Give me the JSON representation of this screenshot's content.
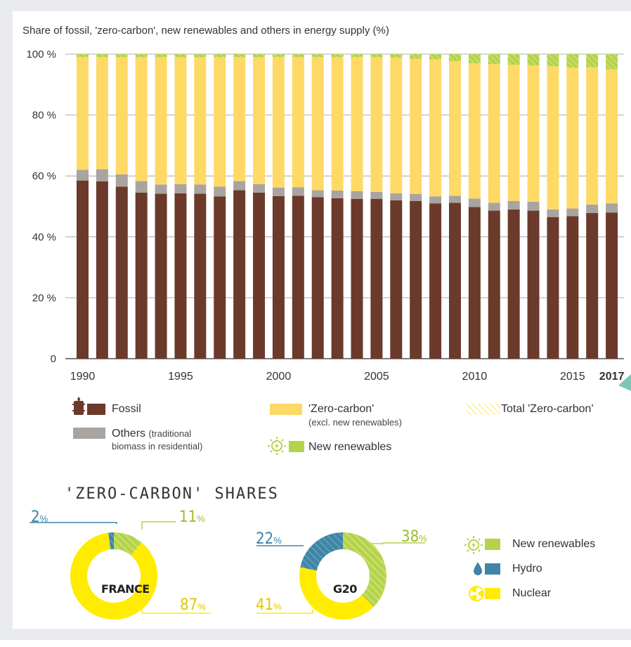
{
  "colors": {
    "fossil": "#6b3a2a",
    "others": "#a9a4a0",
    "zero_carbon": "#ffd966",
    "new_renewables": "#b5d34a",
    "hydro": "#3f85a6",
    "nuclear": "#ffec00",
    "frame_bg": "#e8eaee"
  },
  "chart_title": "Share of fossil, 'zero-carbon', new renewables and others in energy supply (%)",
  "chart_data": [
    {
      "type": "bar",
      "stacked": true,
      "title": "Share of fossil, 'zero-carbon', new renewables and others in energy supply (%)",
      "xlabel": "",
      "ylabel": "",
      "ylim": [
        0,
        100
      ],
      "y_ticks": [
        "100 %",
        "80 %",
        "60 %",
        "40 %",
        "20 %",
        "0"
      ],
      "x_tick_labels": [
        "1990",
        "1995",
        "2000",
        "2005",
        "2010",
        "2015",
        "2017"
      ],
      "categories": [
        "1990",
        "1991",
        "1992",
        "1993",
        "1994",
        "1995",
        "1996",
        "1997",
        "1998",
        "1999",
        "2000",
        "2001",
        "2002",
        "2003",
        "2004",
        "2005",
        "2006",
        "2007",
        "2008",
        "2009",
        "2010",
        "2011",
        "2012",
        "2013",
        "2014",
        "2015",
        "2016",
        "2017"
      ],
      "series": [
        {
          "name": "Fossil",
          "values": [
            58.5,
            58.2,
            56.5,
            54.5,
            54.2,
            54.3,
            54.2,
            53.3,
            55.3,
            54.5,
            53.4,
            53.5,
            53.0,
            52.7,
            52.5,
            52.5,
            52.0,
            51.8,
            51.0,
            51.2,
            49.8,
            48.6,
            49.0,
            48.6,
            46.5,
            46.8,
            47.8,
            48.0
          ]
        },
        {
          "name": "Others (traditional biomass in residential)",
          "values": [
            3.5,
            4.0,
            4.0,
            3.8,
            3.0,
            3.0,
            3.0,
            3.2,
            3.0,
            2.8,
            2.8,
            2.8,
            2.3,
            2.5,
            2.5,
            2.3,
            2.3,
            2.3,
            2.3,
            2.3,
            2.8,
            2.6,
            2.8,
            2.9,
            2.5,
            2.5,
            2.8,
            3.0
          ]
        },
        {
          "name": "'Zero-carbon' (excl. new renewables)",
          "values": [
            37.0,
            36.8,
            38.5,
            40.7,
            41.8,
            41.7,
            41.8,
            42.5,
            40.7,
            41.7,
            42.8,
            42.7,
            43.7,
            43.8,
            44.0,
            44.2,
            44.6,
            44.4,
            45.0,
            44.2,
            44.4,
            45.5,
            44.7,
            44.8,
            47.0,
            46.3,
            45.1,
            44.0
          ]
        },
        {
          "name": "New renewables",
          "values": [
            1.0,
            1.0,
            1.0,
            1.0,
            1.0,
            1.0,
            1.0,
            1.0,
            1.0,
            1.0,
            1.0,
            1.0,
            1.0,
            1.0,
            1.0,
            1.0,
            1.1,
            1.5,
            1.7,
            2.3,
            3.0,
            3.3,
            3.5,
            3.7,
            4.0,
            4.4,
            4.3,
            5.0
          ]
        }
      ],
      "legend": [
        {
          "label": "Fossil"
        },
        {
          "label": "Others",
          "sublabel": "(traditional",
          "sublabel2": "biomass in residential)"
        },
        {
          "label": "'Zero-carbon'",
          "sublabel": "(excl. new renewables)"
        },
        {
          "label": "New renewables"
        },
        {
          "label": "Total 'Zero-carbon'"
        }
      ]
    },
    {
      "type": "pie",
      "title": "FRANCE",
      "categories": [
        "New renewables",
        "Hydro",
        "Nuclear"
      ],
      "values": [
        11,
        2,
        87
      ],
      "labels": [
        "11",
        "2",
        "87"
      ]
    },
    {
      "type": "pie",
      "title": "G20",
      "categories": [
        "New renewables",
        "Hydro",
        "Nuclear"
      ],
      "values": [
        38,
        22,
        41
      ],
      "labels": [
        "38",
        "22",
        "41"
      ]
    }
  ],
  "section_title": "'ZERO-CARBON' SHARES",
  "pct_sign": "%",
  "bottom_legend": [
    "New renewables",
    "Hydro",
    "Nuclear"
  ],
  "icons": {
    "fossil": "oil-barrel-icon",
    "renewables": "sun-bolt-icon",
    "hydro": "water-drop-icon",
    "nuclear": "radiation-icon"
  }
}
